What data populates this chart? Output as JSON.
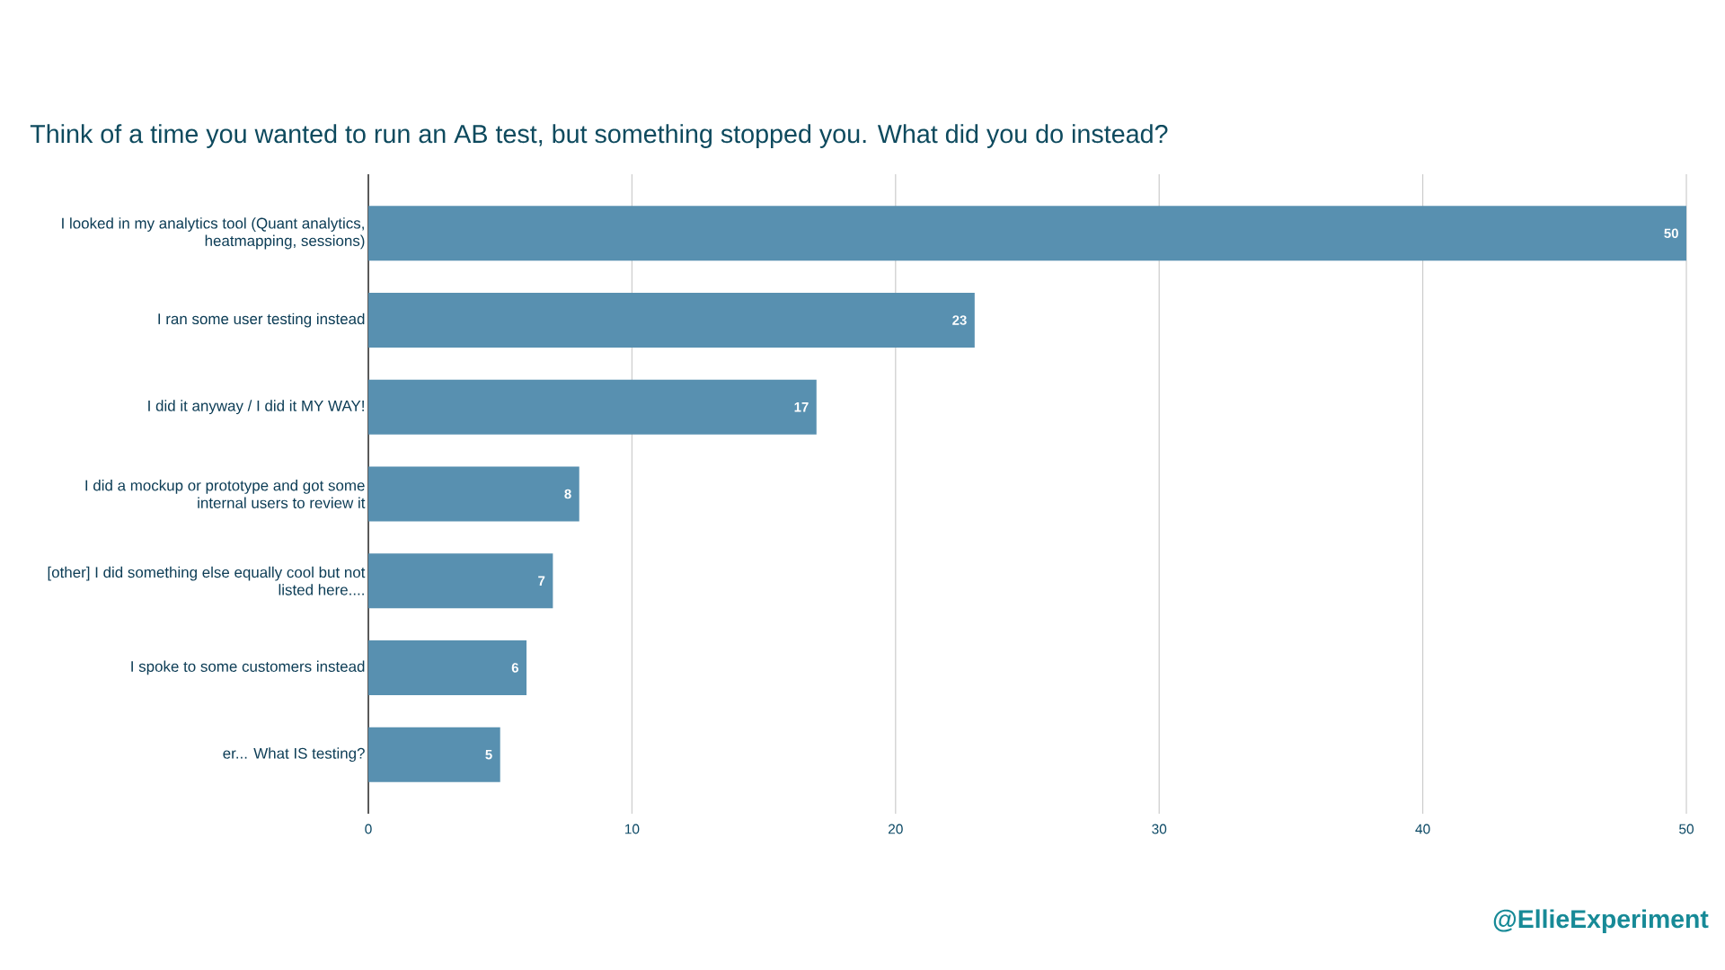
{
  "chart_data": {
    "type": "bar",
    "orientation": "horizontal",
    "title": "Think of a time you wanted to run an AB test, but something stopped you. What did you do instead?",
    "categories": [
      "I looked in my analytics tool (Quant analytics, heatmapping, sessions)",
      "I ran some user testing instead",
      "I did it anyway / I did it MY WAY!",
      "I did a mockup or prototype and got some internal users to review it",
      "[other] I did something else equally cool but not listed here....",
      "I spoke to some customers instead",
      "er... What IS testing?"
    ],
    "values": [
      50,
      23,
      17,
      8,
      7,
      6,
      5
    ],
    "color": "#5890b0",
    "xlim": [
      0,
      50
    ],
    "xticks": [
      0,
      10,
      20,
      30,
      40,
      50
    ],
    "grid": "x",
    "data_labels": true,
    "annotations": [
      "@EllieExperiment"
    ]
  }
}
